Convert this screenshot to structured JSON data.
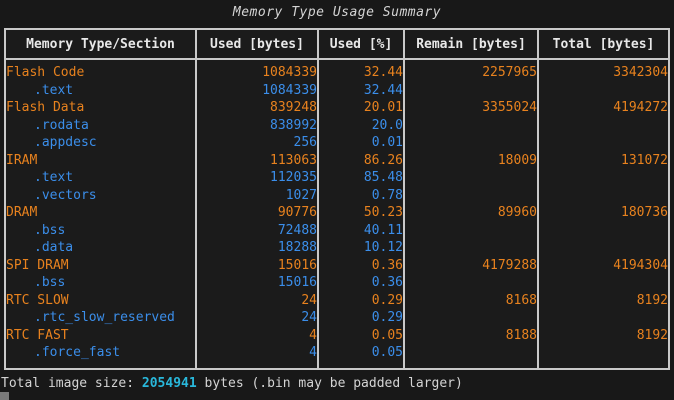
{
  "title": "Memory Type Usage Summary",
  "colors": {
    "background": "#181818",
    "border": "#c9c9c9",
    "main_row_orange": "#e8821e",
    "sub_row_blue": "#3b8eea",
    "total_cyan": "#29b8db",
    "text_gray": "#d4d4d4"
  },
  "table": {
    "headers": [
      "Memory Type/Section",
      "Used [bytes]",
      "Used [%]",
      "Remain [bytes]",
      "Total [bytes]"
    ],
    "rows": [
      {
        "level": "main",
        "label": "Flash Code",
        "used": "1084339",
        "pct": "32.44",
        "remain": "2257965",
        "total": "3342304"
      },
      {
        "level": "sub",
        "label": ".text",
        "used": "1084339",
        "pct": "32.44",
        "remain": "",
        "total": ""
      },
      {
        "level": "main",
        "label": "Flash Data",
        "used": "839248",
        "pct": "20.01",
        "remain": "3355024",
        "total": "4194272"
      },
      {
        "level": "sub",
        "label": ".rodata",
        "used": "838992",
        "pct": "20.0",
        "remain": "",
        "total": ""
      },
      {
        "level": "sub",
        "label": ".appdesc",
        "used": "256",
        "pct": "0.01",
        "remain": "",
        "total": ""
      },
      {
        "level": "main",
        "label": "IRAM",
        "used": "113063",
        "pct": "86.26",
        "remain": "18009",
        "total": "131072"
      },
      {
        "level": "sub",
        "label": ".text",
        "used": "112035",
        "pct": "85.48",
        "remain": "",
        "total": ""
      },
      {
        "level": "sub",
        "label": ".vectors",
        "used": "1027",
        "pct": "0.78",
        "remain": "",
        "total": ""
      },
      {
        "level": "main",
        "label": "DRAM",
        "used": "90776",
        "pct": "50.23",
        "remain": "89960",
        "total": "180736"
      },
      {
        "level": "sub",
        "label": ".bss",
        "used": "72488",
        "pct": "40.11",
        "remain": "",
        "total": ""
      },
      {
        "level": "sub",
        "label": ".data",
        "used": "18288",
        "pct": "10.12",
        "remain": "",
        "total": ""
      },
      {
        "level": "main",
        "label": "SPI DRAM",
        "used": "15016",
        "pct": "0.36",
        "remain": "4179288",
        "total": "4194304"
      },
      {
        "level": "sub",
        "label": ".bss",
        "used": "15016",
        "pct": "0.36",
        "remain": "",
        "total": ""
      },
      {
        "level": "main",
        "label": "RTC SLOW",
        "used": "24",
        "pct": "0.29",
        "remain": "8168",
        "total": "8192"
      },
      {
        "level": "sub",
        "label": ".rtc_slow_reserved",
        "used": "24",
        "pct": "0.29",
        "remain": "",
        "total": ""
      },
      {
        "level": "main",
        "label": "RTC FAST",
        "used": "4",
        "pct": "0.05",
        "remain": "8188",
        "total": "8192"
      },
      {
        "level": "sub",
        "label": ".force_fast",
        "used": "4",
        "pct": "0.05",
        "remain": "",
        "total": ""
      }
    ]
  },
  "footer": {
    "prefix": "Total image size: ",
    "total_bytes": "2054941",
    "suffix": " bytes (.bin may be padded larger)"
  }
}
